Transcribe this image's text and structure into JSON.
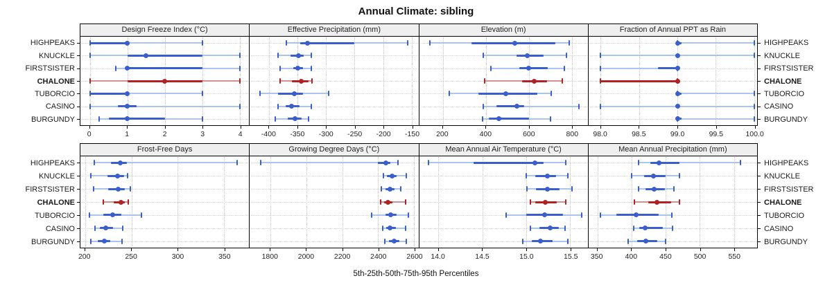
{
  "title": "Annual Climate: sibling",
  "caption": "5th-25th-50th-75th-95th Percentiles",
  "colors": {
    "series_main": "#3a5fcd",
    "series_light": "#a9c4ef",
    "highlight_main": "#b22222",
    "highlight_light": "#d49090",
    "header_bg": "#efefef",
    "panel_border": "#000000",
    "gridline": "#c9c9c9"
  },
  "chart_data": {
    "type": "dot-interval-percentiles",
    "legend": "thin line = 5th-95th percentile, thick line = 25th-75th percentile, dot = 50th percentile",
    "percentile_order": [
      "5th",
      "25th",
      "50th",
      "75th",
      "95th"
    ],
    "sites": [
      "HIGHPEAKS",
      "KNUCKLE",
      "FIRSTSISTER",
      "CHALONE",
      "TUBORCIO",
      "CASINO",
      "BURGUNDY"
    ],
    "highlight_site": "CHALONE",
    "panels": [
      {
        "title": "Design Freeze Index (°C)",
        "ticks": [
          "0",
          "1",
          "2",
          "3",
          "4"
        ],
        "xlim": [
          -0.25,
          4.25
        ],
        "values": [
          [
            0,
            0,
            1,
            1,
            3
          ],
          [
            0,
            1,
            1.5,
            3,
            4
          ],
          [
            0.7,
            1,
            1,
            3,
            4
          ],
          [
            0,
            1,
            2,
            3,
            4
          ],
          [
            0,
            0,
            1,
            1,
            3
          ],
          [
            0,
            0.75,
            1,
            1.25,
            4
          ],
          [
            0.25,
            0.5,
            1,
            2,
            3
          ]
        ]
      },
      {
        "title": "Effective Precipitation (mm)",
        "ticks": [
          "-400",
          "-350",
          "-300",
          "-250",
          "-200",
          "-150"
        ],
        "xlim": [
          -434,
          -138
        ],
        "values": [
          [
            -370,
            -345,
            -333,
            -250,
            -157
          ],
          [
            -385,
            -362,
            -348,
            -339,
            -326
          ],
          [
            -381,
            -358,
            -350,
            -341,
            -326
          ],
          [
            -381,
            -360,
            -344,
            -331,
            -325
          ],
          [
            -416,
            -385,
            -356,
            -341,
            -296
          ],
          [
            -385,
            -371,
            -361,
            -347,
            -326
          ],
          [
            -389,
            -367,
            -355,
            -343,
            -331
          ]
        ]
      },
      {
        "title": "Elevation (m)",
        "ticks": [
          "200",
          "400",
          "600",
          "800"
        ],
        "xlim": [
          90,
          875
        ],
        "values": [
          [
            140,
            335,
            535,
            725,
            790
          ],
          [
            390,
            545,
            595,
            670,
            775
          ],
          [
            425,
            555,
            600,
            690,
            765
          ],
          [
            395,
            570,
            625,
            685,
            755
          ],
          [
            230,
            365,
            495,
            640,
            705
          ],
          [
            390,
            450,
            545,
            580,
            835
          ],
          [
            385,
            415,
            460,
            600,
            700
          ]
        ]
      },
      {
        "title": "Fraction of Annual PPT as Rain",
        "ticks": [
          "98.0",
          "98.5",
          "99.0",
          "99.5",
          "100.0"
        ],
        "xlim": [
          97.84,
          100.04
        ],
        "values": [
          [
            99,
            99,
            99,
            99.05,
            100
          ],
          [
            98,
            98.97,
            99,
            99.03,
            100
          ],
          [
            98,
            98.75,
            99,
            99,
            99
          ],
          [
            98,
            98,
            99,
            99,
            99
          ],
          [
            99,
            99,
            99,
            99.05,
            100
          ],
          [
            98,
            98.97,
            99,
            99.03,
            100
          ],
          [
            99,
            99,
            99,
            99.05,
            100
          ]
        ]
      },
      {
        "title": "Frost-Free Days",
        "ticks": [
          "200",
          "250",
          "300",
          "350"
        ],
        "xlim": [
          195,
          377
        ],
        "values": [
          [
            210,
            228,
            238,
            245,
            364
          ],
          [
            206,
            224,
            235,
            242,
            246
          ],
          [
            209,
            225,
            236,
            243,
            249
          ],
          [
            220,
            231,
            239,
            243,
            247
          ],
          [
            205,
            220,
            230,
            239,
            261
          ],
          [
            211,
            216,
            222,
            230,
            241
          ],
          [
            206,
            214,
            221,
            227,
            240
          ]
        ]
      },
      {
        "title": "Growing Degree Days (°C)",
        "ticks": [
          "1800",
          "2000",
          "2200",
          "2400",
          "2600"
        ],
        "xlim": [
          1685,
          2625
        ],
        "values": [
          [
            1745,
            2400,
            2445,
            2470,
            2510
          ],
          [
            2428,
            2448,
            2477,
            2505,
            2558
          ],
          [
            2420,
            2440,
            2465,
            2490,
            2528
          ],
          [
            2415,
            2435,
            2455,
            2480,
            2552
          ],
          [
            2365,
            2440,
            2470,
            2505,
            2568
          ],
          [
            2425,
            2445,
            2465,
            2500,
            2555
          ],
          [
            2438,
            2460,
            2490,
            2517,
            2558
          ]
        ]
      },
      {
        "title": "Mean Annual Air Temperature (°C)",
        "ticks": [
          "14.0",
          "14.5",
          "15.0",
          "15.5"
        ],
        "xlim": [
          13.78,
          15.7
        ],
        "values": [
          [
            13.89,
            14.4,
            15.1,
            15.2,
            15.45
          ],
          [
            15.0,
            15.1,
            15.24,
            15.34,
            15.47
          ],
          [
            15.01,
            15.11,
            15.24,
            15.38,
            15.52
          ],
          [
            15.05,
            15.1,
            15.22,
            15.35,
            15.45
          ],
          [
            14.77,
            15.0,
            15.21,
            15.42,
            15.63
          ],
          [
            15.05,
            15.15,
            15.27,
            15.37,
            15.44
          ],
          [
            14.96,
            15.06,
            15.16,
            15.3,
            15.47
          ]
        ]
      },
      {
        "title": "Mean Annual Precipitation (mm)",
        "ticks": [
          "350",
          "400",
          "450",
          "500",
          "550"
        ],
        "xlim": [
          337,
          584
        ],
        "values": [
          [
            410,
            428,
            440,
            470,
            560
          ],
          [
            400,
            418,
            432,
            450,
            470
          ],
          [
            410,
            421,
            433,
            449,
            462
          ],
          [
            404,
            425,
            437,
            458,
            470
          ],
          [
            355,
            378,
            407,
            440,
            459
          ],
          [
            403,
            411,
            420,
            446,
            460
          ],
          [
            395,
            408,
            421,
            438,
            450
          ]
        ]
      }
    ]
  }
}
